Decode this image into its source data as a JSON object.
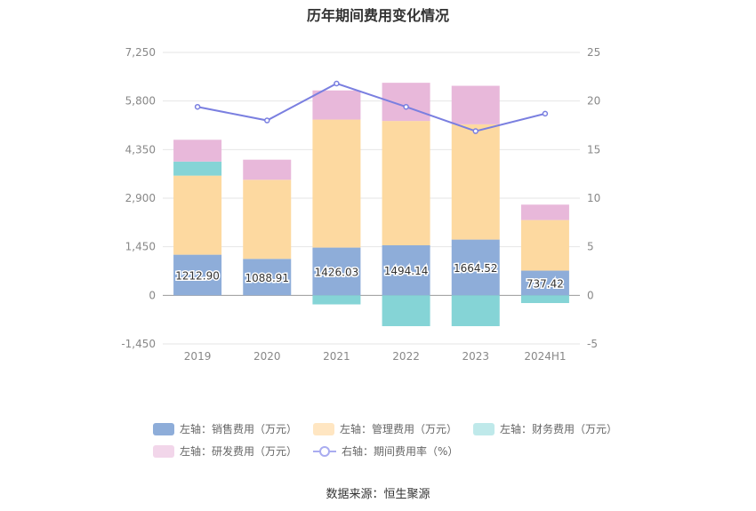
{
  "chart_data": {
    "type": "bar",
    "title": "历年期间费用变化情况",
    "categories": [
      "2019",
      "2020",
      "2021",
      "2022",
      "2023",
      "2024H1"
    ],
    "left_axis": {
      "ticks": [
        "-1,450",
        "0",
        "1,450",
        "2,900",
        "4,350",
        "5,800",
        "7,250"
      ],
      "ylim": [
        -1450,
        7250
      ]
    },
    "right_axis": {
      "ticks": [
        "-5",
        "0",
        "5",
        "10",
        "15",
        "20",
        "25"
      ],
      "ylim": [
        -5,
        25
      ]
    },
    "series": [
      {
        "name": "左轴：销售费用（万元）",
        "kind": "bar",
        "axis": "left",
        "values": [
          1212.9,
          1088.91,
          1426.03,
          1494.14,
          1664.52,
          737.42
        ],
        "labels": [
          "1212.90",
          "1088.91",
          "1426.03",
          "1494.14",
          "1664.52",
          "737.42"
        ]
      },
      {
        "name": "左轴：管理费用（万元）",
        "kind": "bar",
        "axis": "left",
        "values": [
          2360,
          2360,
          3820,
          3710,
          3440,
          1510
        ]
      },
      {
        "name": "左轴：财务费用（万元）",
        "kind": "bar",
        "axis": "left",
        "values": [
          420,
          0,
          -270,
          -920,
          -920,
          -230
        ]
      },
      {
        "name": "左轴：研发费用（万元）",
        "kind": "bar",
        "axis": "left",
        "values": [
          650,
          600,
          870,
          1140,
          1150,
          460
        ]
      },
      {
        "name": "右轴：期间费用率（%）",
        "kind": "line",
        "axis": "right",
        "values": [
          19.4,
          18.0,
          21.8,
          19.4,
          16.9,
          18.7
        ]
      }
    ],
    "grid": true,
    "legend_position": "bottom"
  },
  "colors": {
    "sales": "#8eadd9",
    "admin": "#fdd9a0",
    "finance": "#85d4d6",
    "rd": "#e8b8da",
    "line": "#7a7fe0",
    "grid": "#e6e6e6",
    "axis_text": "#888888"
  },
  "legend": {
    "sales": "左轴：销售费用（万元）",
    "admin": "左轴：管理费用（万元）",
    "finance": "左轴：财务费用（万元）",
    "rd": "左轴：研发费用（万元）",
    "rate": "右轴：期间费用率（%）"
  },
  "source": "数据来源：恒生聚源"
}
